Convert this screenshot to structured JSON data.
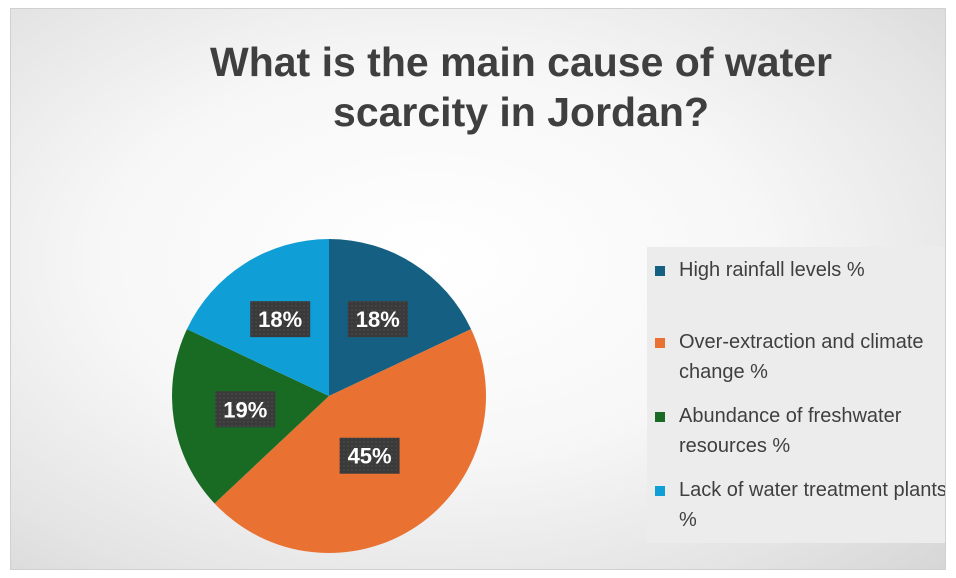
{
  "chart_data": {
    "type": "pie",
    "title": "What is the main cause of water scarcity in Jordan?",
    "categories": [
      "High rainfall levels %",
      " Over-extraction and climate change %",
      " Abundance of freshwater resources %",
      " Lack of water treatment plants %"
    ],
    "values": [
      18,
      45,
      19,
      18
    ],
    "data_labels": [
      "18%",
      "45%",
      "19%",
      "18%"
    ],
    "colors": [
      "#156082",
      "#E97132",
      "#196B24",
      "#0F9ED5"
    ],
    "legend_position": "right"
  }
}
